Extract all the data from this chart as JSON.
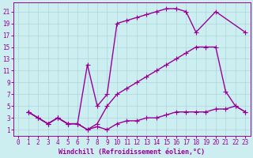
{
  "background_color": "#cceef0",
  "grid_color": "#aad8dc",
  "line_color": "#990099",
  "marker": "+",
  "markersize": 4,
  "linewidth": 1.0,
  "xlabel": "Windchill (Refroidissement éolien,°C)",
  "xlabel_fontsize": 6.0,
  "tick_fontsize": 5.5,
  "xlim": [
    -0.5,
    23.5
  ],
  "ylim": [
    0,
    22.5
  ],
  "yticks": [
    1,
    3,
    5,
    7,
    9,
    11,
    13,
    15,
    17,
    19,
    21
  ],
  "xticks": [
    0,
    1,
    2,
    3,
    4,
    5,
    6,
    7,
    8,
    9,
    10,
    11,
    12,
    13,
    14,
    15,
    16,
    17,
    18,
    19,
    20,
    21,
    22,
    23
  ],
  "series": [
    {
      "x": [
        1,
        2,
        3,
        4,
        5,
        6,
        7,
        8,
        9,
        10,
        11,
        12,
        13,
        14,
        15,
        16,
        17,
        18,
        20,
        23
      ],
      "y": [
        4,
        3,
        2,
        3,
        2,
        2,
        12,
        5,
        7,
        19,
        19.5,
        20,
        20.5,
        21,
        21.5,
        21.5,
        21,
        17.5,
        21,
        17.5
      ]
    },
    {
      "x": [
        1,
        2,
        3,
        4,
        5,
        6,
        7,
        8,
        9,
        10,
        11,
        12,
        13,
        14,
        15,
        16,
        17,
        18,
        19,
        20,
        21,
        22,
        23
      ],
      "y": [
        4,
        3,
        2,
        3,
        2,
        2,
        1,
        2,
        5,
        7,
        8,
        9,
        10,
        11,
        12,
        13,
        14,
        15,
        15,
        15,
        7.5,
        5,
        4
      ]
    },
    {
      "x": [
        1,
        2,
        3,
        4,
        5,
        6,
        7,
        8,
        9,
        10,
        11,
        12,
        13,
        14,
        15,
        16,
        17,
        18,
        19,
        20,
        21,
        22,
        23
      ],
      "y": [
        4,
        3,
        2,
        3,
        2,
        2,
        1,
        1.5,
        1,
        2,
        2.5,
        2.5,
        3,
        3,
        3.5,
        4,
        4,
        4,
        4,
        4.5,
        4.5,
        5,
        4
      ]
    }
  ]
}
